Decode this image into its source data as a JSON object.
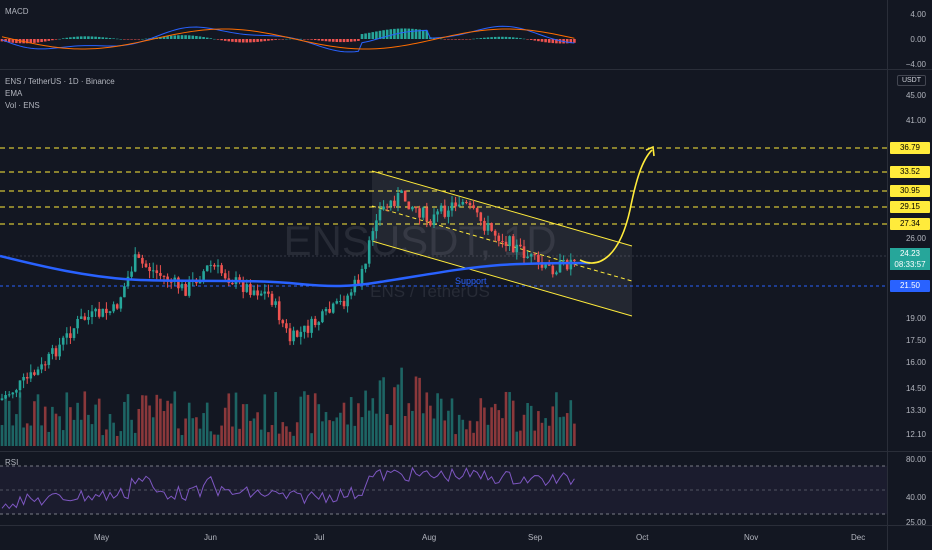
{
  "macd": {
    "title": "MACD",
    "axis": [
      "4.00",
      "0.00",
      "−4.00"
    ]
  },
  "main": {
    "symbol": "ENS / TetherUS · 1D · Binance",
    "indicators": [
      "EMA",
      "Vol · ENS"
    ],
    "currency": "USDT",
    "watermark_main": "ENSUSDT, 1D",
    "watermark_sub": "ENS / TetherUS",
    "support_label": "Support",
    "axis": [
      "45.00",
      "41.00",
      "26.00",
      "19.00",
      "17.50",
      "16.00",
      "14.50",
      "13.30",
      "12.10"
    ],
    "levels": [
      {
        "value": "36.79",
        "color": "#ffeb3b"
      },
      {
        "value": "33.52",
        "color": "#ffeb3b"
      },
      {
        "value": "30.95",
        "color": "#ffeb3b"
      },
      {
        "value": "29.15",
        "color": "#ffeb3b"
      },
      {
        "value": "27.34",
        "color": "#ffeb3b"
      }
    ],
    "current_price": "24.23",
    "countdown": "08:33:57",
    "support_price": "21.50",
    "colors": {
      "bull": "#26a69a",
      "bear": "#ef5350",
      "ema": "#2962ff",
      "channel": "#ffeb3b"
    }
  },
  "rsi": {
    "title": "RSI",
    "axis": [
      "80.00",
      "40.00",
      "25.00"
    ]
  },
  "time_axis": [
    "May",
    "Jun",
    "Jul",
    "Aug",
    "Sep",
    "Oct",
    "Nov",
    "Dec"
  ]
}
